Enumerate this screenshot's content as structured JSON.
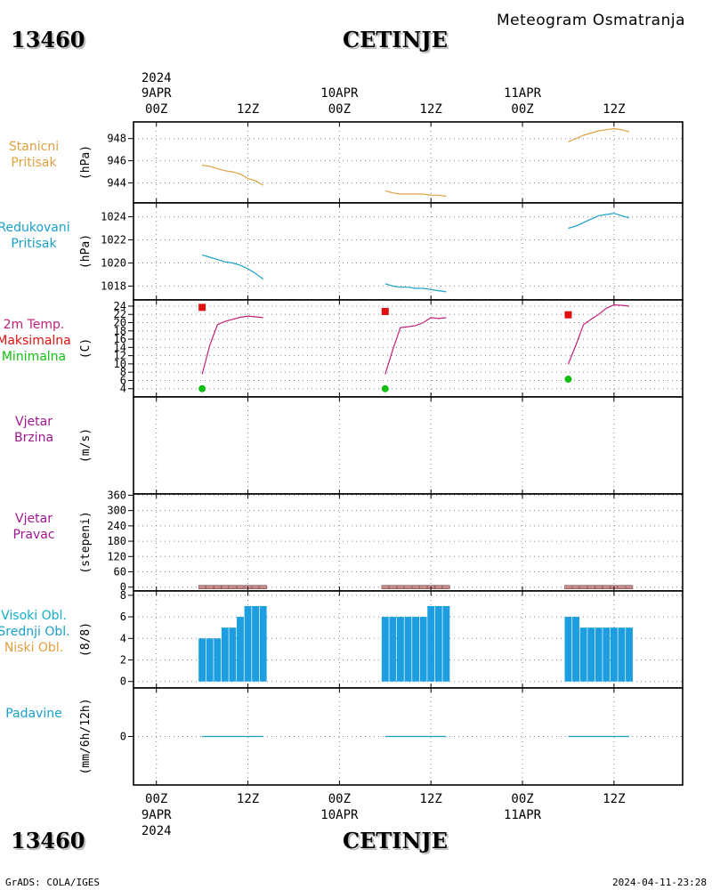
{
  "header": {
    "station_id": "13460",
    "station_name": "CETINJE",
    "meteogram_title": "Meteogram Osmatranja"
  },
  "footer": {
    "credit": "GrADS: COLA/IGES",
    "timestamp": "2024-04-11-23:28"
  },
  "colors": {
    "pressure": "#e0a040",
    "reduced_pressure": "#1aa0c8",
    "temperature": "#c0207a",
    "tmax": "#e01010",
    "tmin": "#10c010",
    "wind": "#a01890",
    "wind_dir_bar": "#c88888",
    "cloud": "#1c9ee0",
    "precip": "#1aa0c8",
    "high_cloud_label": "#10b0c8",
    "mid_cloud_label": "#1aa0c8",
    "low_cloud_label": "#e0a040"
  },
  "chart_data": {
    "type": "line",
    "time_axis": {
      "year": "2024",
      "top_dates": [
        "9APR",
        "10APR",
        "11APR"
      ],
      "bottom_dates": [
        "9APR",
        "10APR",
        "11APR"
      ],
      "hour_labels": [
        "00Z",
        "12Z",
        "00Z",
        "12Z",
        "00Z",
        "12Z"
      ],
      "range_hours": [
        -3,
        69
      ],
      "grid": true
    },
    "panels": [
      {
        "id": "station_pressure",
        "label_lines": [
          "Stanicni",
          "Pritisak"
        ],
        "unit": "(hPa)",
        "ylim": [
          942.2,
          949.5
        ],
        "yticks": [
          "944",
          "946",
          "948"
        ],
        "series": [
          {
            "values": [
              [
                6,
                945.6
              ],
              [
                7,
                945.5
              ],
              [
                8,
                945.3
              ],
              [
                9,
                945.1
              ],
              [
                10,
                945.0
              ],
              [
                11,
                944.8
              ],
              [
                12,
                944.4
              ],
              [
                13,
                944.2
              ],
              [
                14,
                943.8
              ]
            ],
            "type": "line"
          },
          {
            "values": [
              [
                30,
                943.3
              ],
              [
                31,
                943.1
              ],
              [
                32,
                943.0
              ],
              [
                33,
                943.0
              ],
              [
                34,
                943.0
              ],
              [
                35,
                943.0
              ],
              [
                36,
                942.9
              ],
              [
                37,
                942.9
              ],
              [
                38,
                942.8
              ]
            ],
            "type": "line"
          },
          {
            "values": [
              [
                54,
                947.7
              ],
              [
                55,
                948.0
              ],
              [
                56,
                948.3
              ],
              [
                57,
                948.5
              ],
              [
                58,
                948.7
              ],
              [
                59,
                948.8
              ],
              [
                60,
                948.9
              ],
              [
                61,
                948.8
              ],
              [
                62,
                948.6
              ]
            ],
            "type": "line"
          }
        ]
      },
      {
        "id": "reduced_pressure",
        "label_lines": [
          "Redukovani",
          "Pritisak"
        ],
        "unit": "(hPa)",
        "ylim": [
          1016.8,
          1025.2
        ],
        "yticks": [
          "1018",
          "1020",
          "1022",
          "1024"
        ],
        "series": [
          {
            "values": [
              [
                6,
                1020.7
              ],
              [
                7,
                1020.5
              ],
              [
                8,
                1020.3
              ],
              [
                9,
                1020.1
              ],
              [
                10,
                1020.0
              ],
              [
                11,
                1019.8
              ],
              [
                12,
                1019.5
              ],
              [
                13,
                1019.1
              ],
              [
                14,
                1018.6
              ]
            ],
            "type": "line"
          },
          {
            "values": [
              [
                30,
                1018.2
              ],
              [
                31,
                1018.0
              ],
              [
                32,
                1017.9
              ],
              [
                33,
                1017.9
              ],
              [
                34,
                1017.8
              ],
              [
                35,
                1017.8
              ],
              [
                36,
                1017.7
              ],
              [
                37,
                1017.6
              ],
              [
                38,
                1017.5
              ]
            ],
            "type": "line"
          },
          {
            "values": [
              [
                54,
                1023.0
              ],
              [
                55,
                1023.2
              ],
              [
                56,
                1023.5
              ],
              [
                57,
                1023.8
              ],
              [
                58,
                1024.1
              ],
              [
                59,
                1024.2
              ],
              [
                60,
                1024.3
              ],
              [
                61,
                1024.1
              ],
              [
                62,
                1023.9
              ]
            ],
            "type": "line"
          }
        ]
      },
      {
        "id": "temperature",
        "label_lines": [
          "2m Temp.",
          "Maksimalna",
          "Minimalna"
        ],
        "unit": "(C)",
        "ylim": [
          2,
          25.5
        ],
        "yticks": [
          "4",
          "6",
          "8",
          "10",
          "12",
          "14",
          "16",
          "18",
          "20",
          "22",
          "24"
        ],
        "series": [
          {
            "name": "2m Temp.",
            "values": [
              [
                6,
                7.5
              ],
              [
                7,
                14.5
              ],
              [
                8,
                19.5
              ],
              [
                9,
                20.3
              ],
              [
                10,
                20.8
              ],
              [
                11,
                21.3
              ],
              [
                12,
                21.6
              ],
              [
                13,
                21.4
              ],
              [
                14,
                21.2
              ]
            ],
            "type": "line"
          },
          {
            "name": "2m Temp.",
            "values": [
              [
                30,
                7.5
              ],
              [
                31,
                13.5
              ],
              [
                32,
                18.8
              ],
              [
                33,
                19.0
              ],
              [
                34,
                19.3
              ],
              [
                35,
                20.0
              ],
              [
                36,
                21.2
              ],
              [
                37,
                21.0
              ],
              [
                38,
                21.2
              ]
            ],
            "type": "line"
          },
          {
            "name": "2m Temp.",
            "values": [
              [
                54,
                10.0
              ],
              [
                55,
                14.5
              ],
              [
                56,
                19.5
              ],
              [
                57,
                20.8
              ],
              [
                58,
                22.0
              ],
              [
                59,
                23.5
              ],
              [
                60,
                24.3
              ],
              [
                61,
                24.2
              ],
              [
                62,
                24.0
              ]
            ],
            "type": "line"
          },
          {
            "name": "Maksimalna",
            "values": [
              [
                6,
                23.7
              ],
              [
                30,
                22.7
              ],
              [
                54,
                21.9
              ]
            ],
            "type": "marker"
          },
          {
            "name": "Minimalna",
            "values": [
              [
                6,
                4.0
              ],
              [
                30,
                4.0
              ],
              [
                54,
                6.3
              ]
            ],
            "type": "marker"
          }
        ]
      },
      {
        "id": "wind_speed",
        "label_lines": [
          "Vjetar",
          "Brzina"
        ],
        "unit": "(m/s)",
        "ylim": null,
        "yticks": [],
        "series": []
      },
      {
        "id": "wind_direction",
        "label_lines": [
          "Vjetar",
          "Pravac"
        ],
        "unit": "(stepeni)",
        "ylim": [
          -15,
          365
        ],
        "yticks": [
          "0",
          "60",
          "120",
          "180",
          "240",
          "300",
          "360"
        ],
        "series": [
          {
            "x": [
              6,
              7,
              8,
              9,
              10,
              11,
              12,
              13,
              14,
              30,
              31,
              32,
              33,
              34,
              35,
              36,
              37,
              38,
              54,
              55,
              56,
              57,
              58,
              59,
              60,
              61,
              62
            ],
            "values": [
              0,
              0,
              0,
              0,
              0,
              0,
              0,
              0,
              0,
              0,
              0,
              0,
              0,
              0,
              0,
              0,
              0,
              0,
              0,
              0,
              0,
              0,
              0,
              0,
              0,
              0,
              0
            ],
            "type": "bar"
          }
        ]
      },
      {
        "id": "clouds",
        "label_lines": [
          "Visoki Obl.",
          "Srednji Obl.",
          "Niski Obl."
        ],
        "unit": "(8/8)",
        "ylim": [
          -0.6,
          8.4
        ],
        "yticks": [
          "0",
          "2",
          "4",
          "6",
          "8"
        ],
        "series": [
          {
            "x": [
              6,
              7,
              8,
              9,
              10,
              11,
              12,
              13,
              14,
              30,
              31,
              32,
              33,
              34,
              35,
              36,
              37,
              38,
              54,
              55,
              56,
              57,
              58,
              59,
              60,
              61,
              62
            ],
            "values": [
              4,
              4,
              4,
              5,
              5,
              6,
              7,
              7,
              7,
              6,
              6,
              6,
              6,
              6,
              6,
              7,
              7,
              7,
              6,
              6,
              5,
              5,
              5,
              5,
              5,
              5,
              5
            ],
            "type": "bar"
          }
        ]
      },
      {
        "id": "precipitation",
        "label_lines": [
          "Padavine"
        ],
        "unit": "(mm/6h/12h)",
        "ylim": [
          -5,
          5
        ],
        "yticks": [
          "0"
        ],
        "series": [
          {
            "values": [
              [
                6,
                0
              ],
              [
                7,
                0
              ],
              [
                8,
                0
              ],
              [
                9,
                0
              ],
              [
                10,
                0
              ],
              [
                11,
                0
              ],
              [
                12,
                0
              ],
              [
                13,
                0
              ],
              [
                14,
                0
              ]
            ],
            "type": "line"
          },
          {
            "values": [
              [
                30,
                0
              ],
              [
                31,
                0
              ],
              [
                32,
                0
              ],
              [
                33,
                0
              ],
              [
                34,
                0
              ],
              [
                35,
                0
              ],
              [
                36,
                0
              ],
              [
                37,
                0
              ],
              [
                38,
                0
              ]
            ],
            "type": "line"
          },
          {
            "values": [
              [
                54,
                0
              ],
              [
                55,
                0
              ],
              [
                56,
                0
              ],
              [
                57,
                0
              ],
              [
                58,
                0
              ],
              [
                59,
                0
              ],
              [
                60,
                0
              ],
              [
                61,
                0
              ],
              [
                62,
                0
              ]
            ],
            "type": "line"
          }
        ]
      }
    ]
  }
}
